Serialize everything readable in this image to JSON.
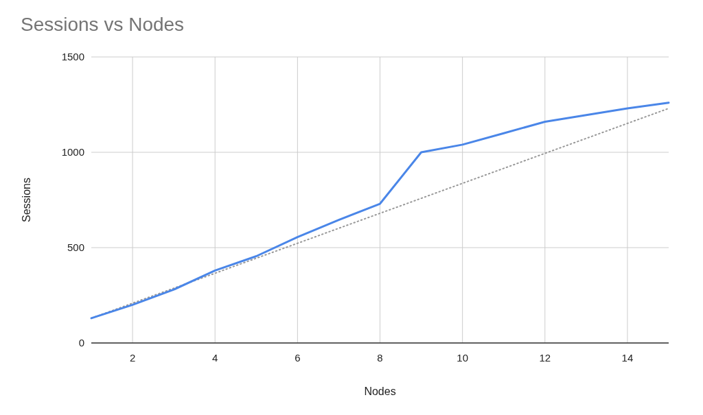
{
  "chart_data": {
    "type": "line",
    "title": "Sessions vs Nodes",
    "xlabel": "Nodes",
    "ylabel": "Sessions",
    "x": [
      1,
      2,
      3,
      4,
      5,
      6,
      7,
      8,
      9,
      10,
      11,
      12,
      13,
      14,
      15
    ],
    "series": [
      {
        "color": "#4a86e8",
        "values": [
          130,
          200,
          280,
          380,
          455,
          555,
          645,
          730,
          1000,
          1040,
          1100,
          1160,
          1195,
          1230,
          1260
        ]
      },
      {
        "type": "line",
        "x": [
          1,
          15
        ],
        "values": [
          130,
          1230
        ],
        "color": "#999999",
        "line_style": "dotted"
      }
    ],
    "xlim": [
      1,
      15
    ],
    "ylim": [
      0,
      1500
    ],
    "xticks": [
      2,
      4,
      6,
      8,
      10,
      12,
      14
    ],
    "yticks": [
      0,
      500,
      1000,
      1500
    ],
    "grid": true
  }
}
